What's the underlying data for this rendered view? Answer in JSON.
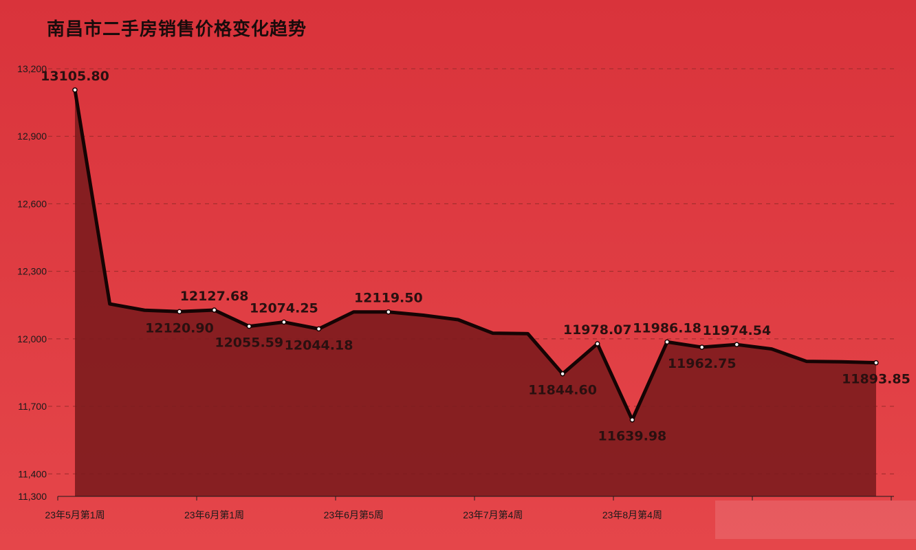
{
  "title": "南昌市二手房销售价格变化趋势",
  "colors": {
    "background_top": "#d9333b",
    "background_bottom": "#e5464a",
    "line": "#150404",
    "area": "#7a1a1c",
    "grid": "#9a2a2a",
    "marker_fill": "#ffffff"
  },
  "chart_data": {
    "type": "area",
    "title": "南昌市二手房销售价格变化趋势",
    "xlabel": "",
    "ylabel": "",
    "ylim": [
      11300,
      13200
    ],
    "y_ticks": [
      "11,300",
      "11,400",
      "11,700",
      "12,000",
      "12,300",
      "12,600",
      "12,900",
      "13,200"
    ],
    "y_tick_values": [
      11300,
      11400,
      11700,
      12000,
      12300,
      12600,
      12900,
      13200
    ],
    "x_tick_labels": [
      "23年5月第1周",
      "23年6月第1周",
      "23年6月第5周",
      "23年7月第4周",
      "23年8月第4周"
    ],
    "x_tick_indices": [
      0,
      4,
      8,
      12,
      16
    ],
    "grid": true,
    "legend": "none",
    "values": [
      13105.8,
      12155,
      12127,
      12120.9,
      12127.68,
      12055.59,
      12074.25,
      12044.18,
      12119.5,
      12119.5,
      12105,
      12085,
      12025,
      12023,
      11844.6,
      11978.07,
      11639.98,
      11986.18,
      11962.75,
      11974.54,
      11955,
      11900,
      11898,
      11893.85
    ],
    "data_labels": [
      {
        "index": 0,
        "text": "13105.80",
        "pos": "above"
      },
      {
        "index": 3,
        "text": "12120.90",
        "pos": "below"
      },
      {
        "index": 4,
        "text": "12127.68",
        "pos": "above"
      },
      {
        "index": 5,
        "text": "12055.59",
        "pos": "below"
      },
      {
        "index": 6,
        "text": "12074.25",
        "pos": "above"
      },
      {
        "index": 7,
        "text": "12044.18",
        "pos": "below"
      },
      {
        "index": 9,
        "text": "12119.50",
        "pos": "above"
      },
      {
        "index": 14,
        "text": "11844.60",
        "pos": "below"
      },
      {
        "index": 15,
        "text": "11978.07",
        "pos": "above"
      },
      {
        "index": 16,
        "text": "11639.98",
        "pos": "below"
      },
      {
        "index": 17,
        "text": "11986.18",
        "pos": "above"
      },
      {
        "index": 18,
        "text": "11962.75",
        "pos": "below"
      },
      {
        "index": 19,
        "text": "11974.54",
        "pos": "above"
      },
      {
        "index": 23,
        "text": "11893.85",
        "pos": "below"
      }
    ]
  }
}
